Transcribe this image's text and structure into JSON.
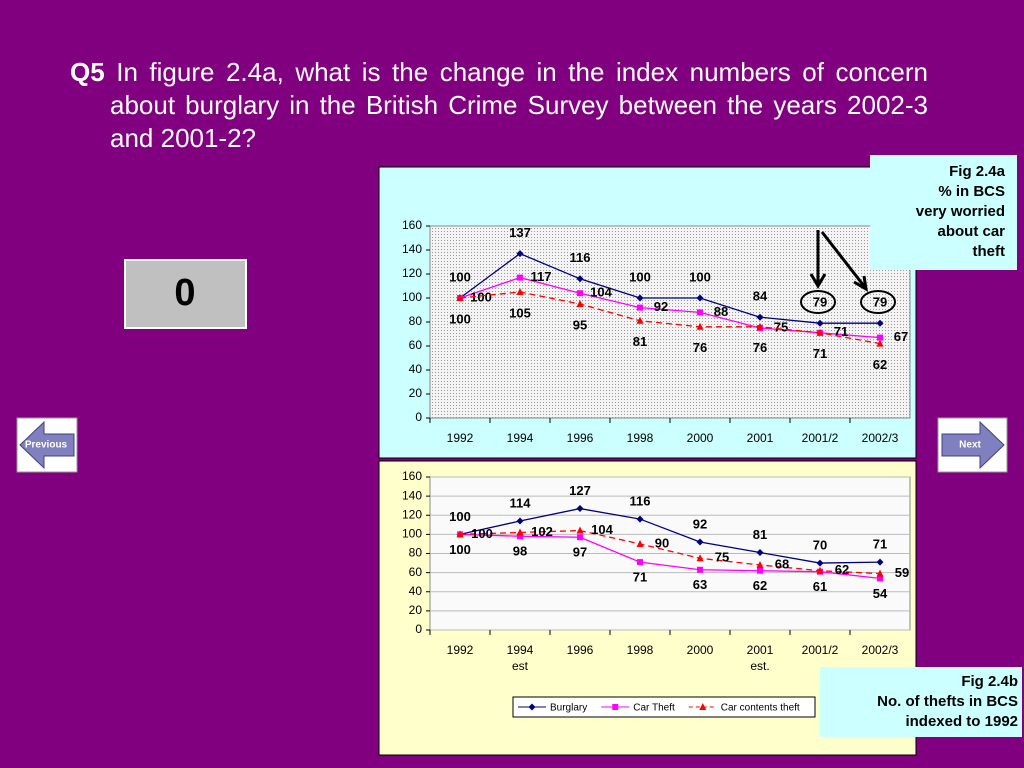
{
  "question": {
    "label": "Q5",
    "text": "In figure 2.4a, what is the change in the index numbers of concern about burglary in the British Crime Survey between the years 2002-3 and 2001-2?"
  },
  "answer": "0",
  "nav": {
    "previous": "Previous",
    "next": "Next"
  },
  "chart_data": [
    {
      "type": "line",
      "caption": [
        "Fig 2.4a",
        "% in BCS",
        "very worried",
        "about car",
        "theft"
      ],
      "categories": [
        "1992",
        "1994",
        "1996",
        "1998",
        "2000",
        "2001",
        "2001/2",
        "2002/3"
      ],
      "series": [
        {
          "color": "#000080",
          "marker": "diamond",
          "dash": false,
          "values": [
            100,
            137,
            116,
            100,
            100,
            84,
            79,
            79
          ]
        },
        {
          "color": "#ff00ff",
          "marker": "square",
          "dash": false,
          "values": [
            100,
            117,
            104,
            92,
            88,
            75,
            71,
            67
          ]
        },
        {
          "color": "#ff0000",
          "marker": "triangle",
          "dash": true,
          "values": [
            100,
            105,
            95,
            81,
            76,
            76,
            71,
            62
          ]
        }
      ],
      "ylim": [
        0,
        160
      ],
      "yticks": [
        0,
        20,
        40,
        60,
        80,
        100,
        120,
        140,
        160
      ],
      "grid": false
    },
    {
      "type": "line",
      "caption": [
        "Fig 2.4b",
        "No. of thefts in BCS",
        "indexed to 1992"
      ],
      "categories": [
        "1992",
        "1994",
        "1996",
        "1998",
        "2000",
        "2001",
        "2001/2",
        "2002/3"
      ],
      "category_notes": [
        null,
        "est",
        null,
        null,
        null,
        "est.",
        null,
        null
      ],
      "series": [
        {
          "name": "Burglary",
          "color": "#000080",
          "marker": "diamond",
          "dash": false,
          "values": [
            100,
            114,
            127,
            116,
            92,
            81,
            70,
            71
          ]
        },
        {
          "name": "Car Theft",
          "color": "#ff00ff",
          "marker": "square",
          "dash": false,
          "values": [
            100,
            98,
            97,
            71,
            63,
            62,
            61,
            54
          ]
        },
        {
          "name": "Car contents theft",
          "color": "#ff0000",
          "marker": "triangle",
          "dash": true,
          "values": [
            100,
            102,
            104,
            90,
            75,
            68,
            62,
            59
          ]
        }
      ],
      "ylim": [
        0,
        160
      ],
      "yticks": [
        0,
        20,
        40,
        60,
        80,
        100,
        120,
        140,
        160
      ],
      "grid": true,
      "legend": "bottom"
    }
  ]
}
